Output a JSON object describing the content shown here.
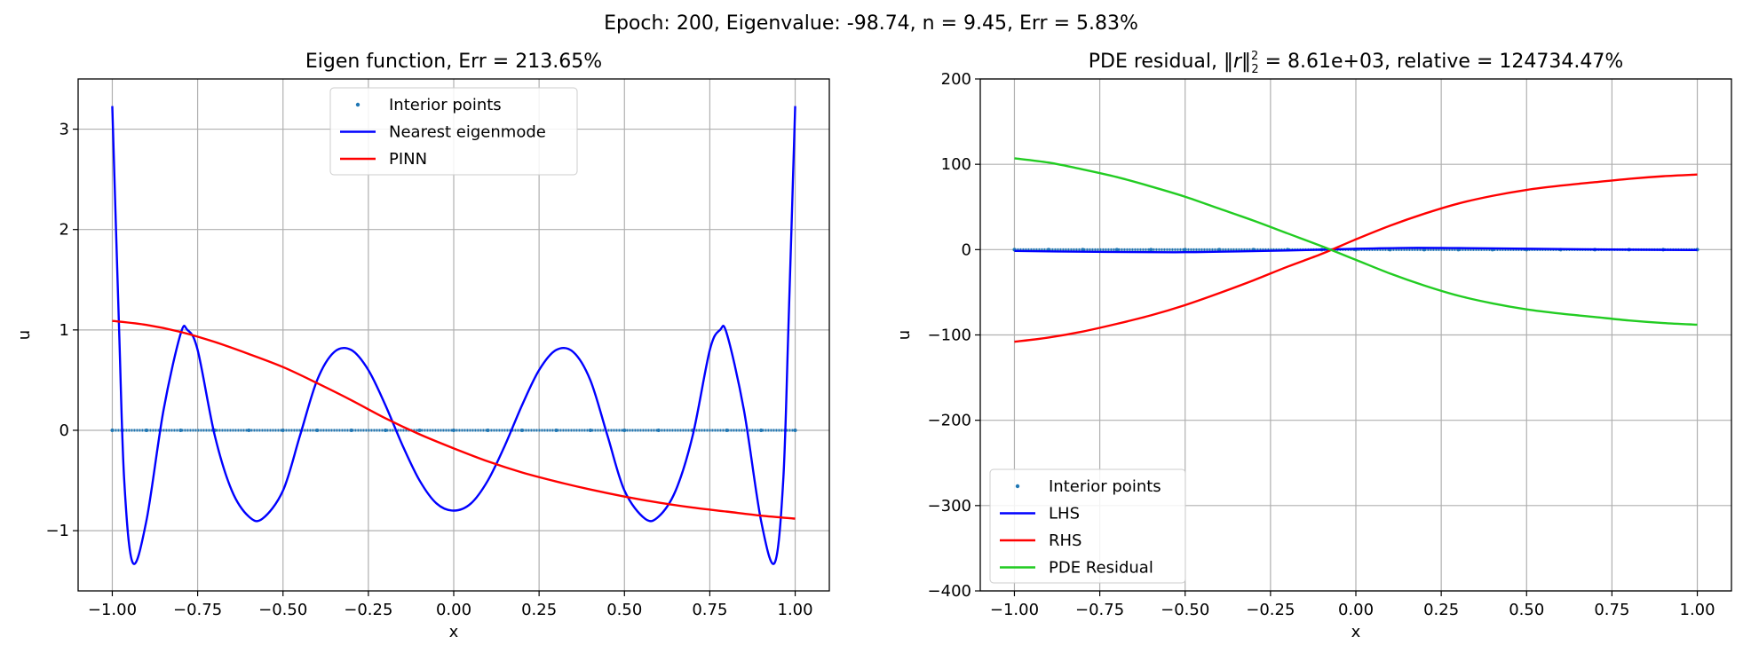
{
  "figure": {
    "suptitle": "Epoch: 200, Eigenvalue: -98.74, n = 9.45, Err = 5.83%"
  },
  "chart_data": [
    {
      "type": "line",
      "title": "Eigen function, Err = 213.65%",
      "xlabel": "x",
      "ylabel": "u",
      "xlim": [
        -1.1,
        1.1
      ],
      "ylim": [
        -1.6,
        3.5
      ],
      "xticks": [
        -1.0,
        -0.75,
        -0.5,
        -0.25,
        0.0,
        0.25,
        0.5,
        0.75,
        1.0
      ],
      "xtick_labels": [
        "−1.00",
        "−0.75",
        "−0.50",
        "−0.25",
        "0.00",
        "0.25",
        "0.50",
        "0.75",
        "1.00"
      ],
      "yticks": [
        -1,
        0,
        1,
        2,
        3
      ],
      "ytick_labels": [
        "−1",
        "0",
        "1",
        "2",
        "3"
      ],
      "grid": true,
      "legend_position": "upper center",
      "series": [
        {
          "name": "Interior points",
          "kind": "scatter",
          "color": "#1f77b4",
          "x": [
            -1.0,
            -0.9,
            -0.8,
            -0.7,
            -0.6,
            -0.5,
            -0.4,
            -0.3,
            -0.2,
            -0.1,
            0.0,
            0.1,
            0.2,
            0.3,
            0.4,
            0.5,
            0.6,
            0.7,
            0.8,
            0.9,
            1.0
          ],
          "y": [
            0,
            0,
            0,
            0,
            0,
            0,
            0,
            0,
            0,
            0,
            0,
            0,
            0,
            0,
            0,
            0,
            0,
            0,
            0,
            0,
            0
          ]
        },
        {
          "name": "Nearest eigenmode",
          "kind": "line",
          "color": "#0000ff",
          "x": [
            -1.0,
            -0.98,
            -0.965,
            -0.94,
            -0.9,
            -0.85,
            -0.8,
            -0.78,
            -0.75,
            -0.7,
            -0.65,
            -0.6,
            -0.56,
            -0.5,
            -0.45,
            -0.4,
            -0.35,
            -0.3,
            -0.25,
            -0.2,
            -0.15,
            -0.1,
            -0.05,
            0.0,
            0.05,
            0.1,
            0.15,
            0.2,
            0.25,
            0.3,
            0.35,
            0.4,
            0.45,
            0.5,
            0.56,
            0.6,
            0.65,
            0.7,
            0.75,
            0.78,
            0.8,
            0.85,
            0.9,
            0.94,
            0.965,
            0.98,
            1.0
          ],
          "y": [
            3.23,
            1.0,
            -0.5,
            -1.32,
            -0.9,
            0.2,
            0.96,
            1.0,
            0.8,
            -0.05,
            -0.6,
            -0.86,
            -0.88,
            -0.6,
            -0.05,
            0.5,
            0.78,
            0.8,
            0.6,
            0.25,
            -0.15,
            -0.5,
            -0.73,
            -0.8,
            -0.73,
            -0.5,
            -0.15,
            0.25,
            0.6,
            0.8,
            0.78,
            0.5,
            -0.05,
            -0.6,
            -0.88,
            -0.86,
            -0.6,
            -0.05,
            0.8,
            1.0,
            0.96,
            0.2,
            -0.9,
            -1.32,
            -0.5,
            1.0,
            3.23
          ]
        },
        {
          "name": "PINN",
          "kind": "line",
          "color": "#ff0000",
          "x": [
            -1.0,
            -0.9,
            -0.8,
            -0.7,
            -0.6,
            -0.5,
            -0.4,
            -0.3,
            -0.2,
            -0.1,
            0.0,
            0.1,
            0.2,
            0.3,
            0.4,
            0.5,
            0.6,
            0.7,
            0.8,
            0.9,
            1.0
          ],
          "y": [
            1.09,
            1.05,
            0.98,
            0.88,
            0.76,
            0.63,
            0.47,
            0.3,
            0.12,
            -0.04,
            -0.18,
            -0.31,
            -0.42,
            -0.51,
            -0.59,
            -0.66,
            -0.72,
            -0.77,
            -0.81,
            -0.85,
            -0.88
          ]
        }
      ]
    },
    {
      "type": "line",
      "title_prefix": "PDE residual, ",
      "title_norm": "‖r‖",
      "title_sup": "2",
      "title_sub": "2",
      "title_suffix": " = 8.61e+03, relative = 124734.47%",
      "xlabel": "x",
      "ylabel": "u",
      "xlim": [
        -1.1,
        1.1
      ],
      "ylim": [
        -400,
        200
      ],
      "xticks": [
        -1.0,
        -0.75,
        -0.5,
        -0.25,
        0.0,
        0.25,
        0.5,
        0.75,
        1.0
      ],
      "xtick_labels": [
        "−1.00",
        "−0.75",
        "−0.50",
        "−0.25",
        "0.00",
        "0.25",
        "0.50",
        "0.75",
        "1.00"
      ],
      "yticks": [
        -400,
        -300,
        -200,
        -100,
        0,
        100,
        200
      ],
      "ytick_labels": [
        "−400",
        "−300",
        "−200",
        "−100",
        "0",
        "100",
        "200"
      ],
      "grid": true,
      "legend_position": "lower left",
      "series": [
        {
          "name": "Interior points",
          "kind": "scatter",
          "color": "#1f77b4",
          "x": [
            -1.0,
            -0.9,
            -0.8,
            -0.7,
            -0.6,
            -0.5,
            -0.4,
            -0.3,
            -0.2,
            -0.1,
            0.0,
            0.1,
            0.2,
            0.3,
            0.4,
            0.5,
            0.6,
            0.7,
            0.8,
            0.9,
            1.0
          ],
          "y": [
            0,
            0,
            0,
            0,
            0,
            0,
            0,
            0,
            0,
            0,
            0,
            0,
            0,
            0,
            0,
            0,
            0,
            0,
            0,
            0,
            0
          ]
        },
        {
          "name": "LHS",
          "kind": "line",
          "color": "#0000ff",
          "x": [
            -1.0,
            -0.8,
            -0.6,
            -0.5,
            -0.4,
            -0.2,
            0.0,
            0.15,
            0.3,
            0.5,
            0.7,
            1.0
          ],
          "y": [
            -1.5,
            -2.5,
            -3.0,
            -3.0,
            -2.5,
            -1.0,
            1.0,
            2.0,
            1.8,
            1.0,
            0.3,
            -0.5
          ]
        },
        {
          "name": "RHS",
          "kind": "line",
          "color": "#ff0000",
          "x": [
            -1.0,
            -0.9,
            -0.8,
            -0.7,
            -0.6,
            -0.5,
            -0.4,
            -0.3,
            -0.2,
            -0.1,
            0.0,
            0.1,
            0.2,
            0.3,
            0.4,
            0.5,
            0.6,
            0.7,
            0.8,
            0.9,
            1.0
          ],
          "y": [
            -108,
            -103,
            -96,
            -87,
            -77,
            -65,
            -51,
            -36,
            -20,
            -5,
            12,
            28,
            42,
            54,
            63,
            70,
            75,
            79,
            83,
            86,
            88
          ]
        },
        {
          "name": "PDE Residual",
          "kind": "line",
          "color": "#22cc22",
          "x": [
            -1.0,
            -0.9,
            -0.8,
            -0.7,
            -0.6,
            -0.5,
            -0.4,
            -0.3,
            -0.2,
            -0.1,
            0.0,
            0.1,
            0.2,
            0.3,
            0.4,
            0.5,
            0.6,
            0.7,
            0.8,
            0.9,
            1.0
          ],
          "y": [
            107,
            102,
            94,
            85,
            74,
            62,
            48,
            34,
            19,
            4,
            -12,
            -28,
            -42,
            -54,
            -63,
            -70,
            -75,
            -79,
            -83,
            -86,
            -88
          ]
        }
      ]
    }
  ]
}
